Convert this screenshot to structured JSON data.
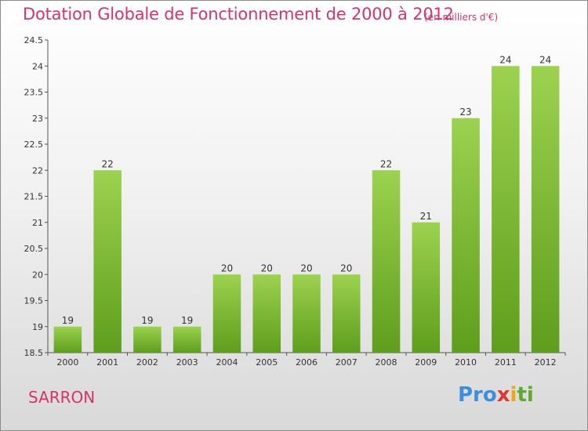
{
  "chart_data": {
    "type": "bar",
    "title": "Dotation Globale de Fonctionnement de 2000 à 2012",
    "subtitle": "(en milliers d'€)",
    "categories": [
      "2000",
      "2001",
      "2002",
      "2003",
      "2004",
      "2005",
      "2006",
      "2007",
      "2008",
      "2009",
      "2010",
      "2011",
      "2012"
    ],
    "values": [
      19,
      22,
      19,
      19,
      20,
      20,
      20,
      20,
      22,
      21,
      23,
      24,
      24
    ],
    "value_labels": [
      "19",
      "22",
      "19",
      "19",
      "20",
      "20",
      "20",
      "20",
      "22",
      "21",
      "23",
      "24",
      "24"
    ],
    "ylim": [
      18.5,
      24.5
    ],
    "yticks": [
      18.5,
      19,
      19.5,
      20,
      20.5,
      21,
      21.5,
      22,
      22.5,
      23,
      23.5,
      24,
      24.5
    ],
    "ytick_labels": [
      "18.5",
      "19",
      "19.5",
      "20",
      "20.5",
      "21",
      "21.5",
      "22",
      "22.5",
      "23",
      "23.5",
      "24",
      "24.5"
    ],
    "grid": false,
    "bar_color": "#7dc03a"
  },
  "footer": {
    "commune": "SARRON",
    "logo_parts": [
      "Pro",
      "x",
      "i",
      "ti"
    ]
  }
}
